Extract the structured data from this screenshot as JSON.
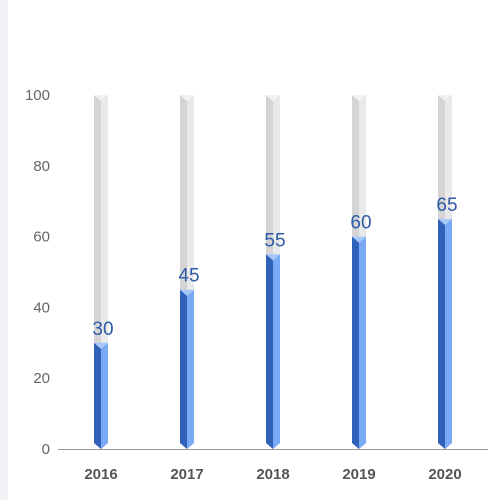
{
  "chart_data": {
    "type": "bar",
    "categories": [
      "2016",
      "2017",
      "2018",
      "2019",
      "2020"
    ],
    "values": [
      30,
      45,
      55,
      60,
      65
    ],
    "max_value": 100,
    "ylim": [
      0,
      100
    ],
    "yticks": [
      "0",
      "20",
      "40",
      "60",
      "80",
      "100"
    ],
    "title": "",
    "xlabel": "",
    "ylabel": "",
    "grid": false,
    "legend": "none",
    "colors": {
      "bar_light": "#7aaaf5",
      "bar_dark": "#2f62b8",
      "bar_top": "#a9c8fa",
      "track_light": "#e9e9e9",
      "track_dark": "#d4d4d4",
      "track_top": "#f2f2f2",
      "data_label": "#2f5aa8",
      "axis": "#999999"
    }
  }
}
